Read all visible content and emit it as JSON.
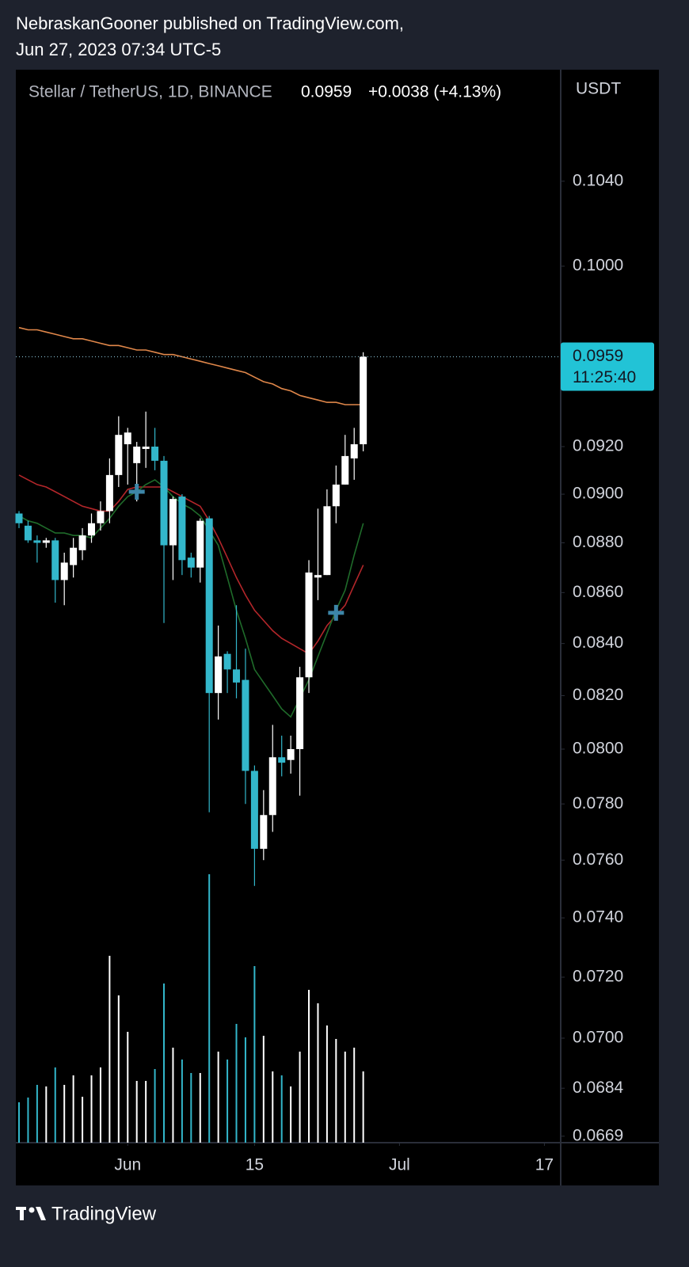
{
  "header": {
    "author_line": "NebraskanGooner published on TradingView.com,",
    "date_line": "Jun 27, 2023 07:34 UTC-5"
  },
  "chart_data": {
    "type": "candlestick",
    "symbol": "Stellar / TetherUS, 1D, BINANCE",
    "last_price": "0.0959",
    "change": "+0.0038 (+4.13%)",
    "countdown": "11:25:40",
    "y_axis_label": "USDT",
    "log_scale": true,
    "up_color": "#ffffff",
    "down_color": "#33b7cb",
    "open": [
      0.0892,
      0.0887,
      0.0881,
      0.088,
      0.0881,
      0.0865,
      0.0871,
      0.0877,
      0.0883,
      0.0888,
      0.0893,
      0.0908,
      0.0921,
      0.0913,
      0.0919,
      0.092,
      0.0914,
      0.0879,
      0.0899,
      0.0874,
      0.087,
      0.089,
      0.0821,
      0.0836,
      0.083,
      0.0826,
      0.0792,
      0.0764,
      0.0776,
      0.0797,
      0.0796,
      0.08,
      0.0827,
      0.0866,
      0.0867,
      0.0895,
      0.0904,
      0.0915,
      0.0921
    ],
    "high": [
      0.0893,
      0.0889,
      0.0883,
      0.0882,
      0.0882,
      0.0876,
      0.0882,
      0.0886,
      0.0892,
      0.0897,
      0.0915,
      0.0933,
      0.0928,
      0.0922,
      0.0935,
      0.0928,
      0.0916,
      0.0899,
      0.09,
      0.0876,
      0.089,
      0.0891,
      0.0847,
      0.0837,
      0.0855,
      0.0838,
      0.0794,
      0.0785,
      0.0809,
      0.0805,
      0.0805,
      0.0831,
      0.0873,
      0.0894,
      0.0902,
      0.0912,
      0.0925,
      0.0928,
      0.0961
    ],
    "low": [
      0.0886,
      0.088,
      0.0872,
      0.0878,
      0.0856,
      0.0855,
      0.0866,
      0.0873,
      0.088,
      0.0885,
      0.0888,
      0.0903,
      0.0904,
      0.0897,
      0.0911,
      0.091,
      0.0848,
      0.0865,
      0.0867,
      0.0866,
      0.0864,
      0.0777,
      0.0811,
      0.0821,
      0.0819,
      0.078,
      0.0751,
      0.076,
      0.077,
      0.079,
      0.0791,
      0.0783,
      0.0821,
      0.0857,
      0.0867,
      0.0888,
      0.0904,
      0.0906,
      0.0918
    ],
    "close": [
      0.0888,
      0.0881,
      0.088,
      0.0881,
      0.0865,
      0.0872,
      0.0878,
      0.0883,
      0.0888,
      0.0893,
      0.0908,
      0.0925,
      0.0926,
      0.092,
      0.092,
      0.0914,
      0.0879,
      0.0898,
      0.0873,
      0.087,
      0.0889,
      0.0821,
      0.0835,
      0.083,
      0.0825,
      0.0792,
      0.0764,
      0.0776,
      0.0797,
      0.0795,
      0.08,
      0.0827,
      0.0868,
      0.0867,
      0.0895,
      0.0904,
      0.0916,
      0.0921,
      0.0959
    ],
    "volume": [
      51,
      57,
      73,
      71,
      95,
      73,
      85,
      58,
      85,
      95,
      236,
      186,
      140,
      78,
      78,
      93,
      201,
      120,
      105,
      88,
      88,
      339,
      115,
      105,
      150,
      133,
      223,
      135,
      90,
      85,
      71,
      115,
      193,
      176,
      148,
      131,
      115,
      120,
      90
    ],
    "lines": [
      {
        "color": "#e0874a",
        "values": [
          0.0972,
          0.0971,
          0.0971,
          0.097,
          0.0969,
          0.0968,
          0.0967,
          0.0967,
          0.0966,
          0.0965,
          0.0964,
          0.0964,
          0.0963,
          0.0962,
          0.0962,
          0.0961,
          0.096,
          0.096,
          0.0959,
          0.0958,
          0.0957,
          0.0956,
          0.0955,
          0.0954,
          0.0953,
          0.0952,
          0.095,
          0.0948,
          0.0947,
          0.0945,
          0.0944,
          0.0942,
          0.0941,
          0.094,
          0.0939,
          0.0939,
          0.0938,
          0.0938,
          0.0938
        ]
      },
      {
        "color": "#b3262a",
        "values": [
          0.0908,
          0.0906,
          0.0904,
          0.0903,
          0.0901,
          0.0899,
          0.0897,
          0.0895,
          0.0894,
          0.0893,
          0.0893,
          0.0897,
          0.0902,
          0.0903,
          0.0903,
          0.0903,
          0.0903,
          0.0901,
          0.0899,
          0.0897,
          0.0895,
          0.0889,
          0.0882,
          0.0874,
          0.0866,
          0.0859,
          0.0853,
          0.0849,
          0.0845,
          0.0842,
          0.084,
          0.0838,
          0.0836,
          0.0841,
          0.0847,
          0.0851,
          0.0855,
          0.0863,
          0.0871
        ]
      },
      {
        "color": "#1f6b2a",
        "values": [
          0.0891,
          0.0889,
          0.0888,
          0.0886,
          0.0884,
          0.0884,
          0.0883,
          0.0883,
          0.0882,
          0.0886,
          0.089,
          0.0895,
          0.0899,
          0.0901,
          0.0904,
          0.0906,
          0.0903,
          0.0899,
          0.0896,
          0.0894,
          0.0891,
          0.0885,
          0.0879,
          0.0866,
          0.0853,
          0.0842,
          0.083,
          0.0825,
          0.082,
          0.0815,
          0.0812,
          0.0819,
          0.0826,
          0.0835,
          0.0844,
          0.0853,
          0.0861,
          0.0875,
          0.0888
        ]
      }
    ],
    "signals": {
      "color": "#3d86a8",
      "x": [
        13,
        35
      ],
      "values": [
        0.0901,
        0.0852
      ]
    },
    "ylim": [
      0.0667,
      0.1095
    ],
    "yticks": [
      {
        "value": 0.104,
        "label": "0.1040"
      },
      {
        "value": 0.1,
        "label": "0.1000"
      },
      {
        "value": 0.092,
        "label": "0.0920"
      },
      {
        "value": 0.09,
        "label": "0.0900"
      },
      {
        "value": 0.088,
        "label": "0.0880"
      },
      {
        "value": 0.086,
        "label": "0.0860"
      },
      {
        "value": 0.084,
        "label": "0.0840"
      },
      {
        "value": 0.082,
        "label": "0.0820"
      },
      {
        "value": 0.08,
        "label": "0.0800"
      },
      {
        "value": 0.078,
        "label": "0.0780"
      },
      {
        "value": 0.076,
        "label": "0.0760"
      },
      {
        "value": 0.074,
        "label": "0.0740"
      },
      {
        "value": 0.072,
        "label": "0.0720"
      },
      {
        "value": 0.07,
        "label": "0.0700"
      },
      0.0684,
      0.0669
    ],
    "xlim": [
      -0.35,
      59.8
    ],
    "xticks": [
      {
        "value": 12,
        "label": "Jun"
      },
      {
        "value": 26,
        "label": "15"
      },
      {
        "value": 42,
        "label": "Jul"
      },
      {
        "value": 58,
        "label": "17"
      }
    ]
  },
  "footer": {
    "brand": "TradingView"
  }
}
